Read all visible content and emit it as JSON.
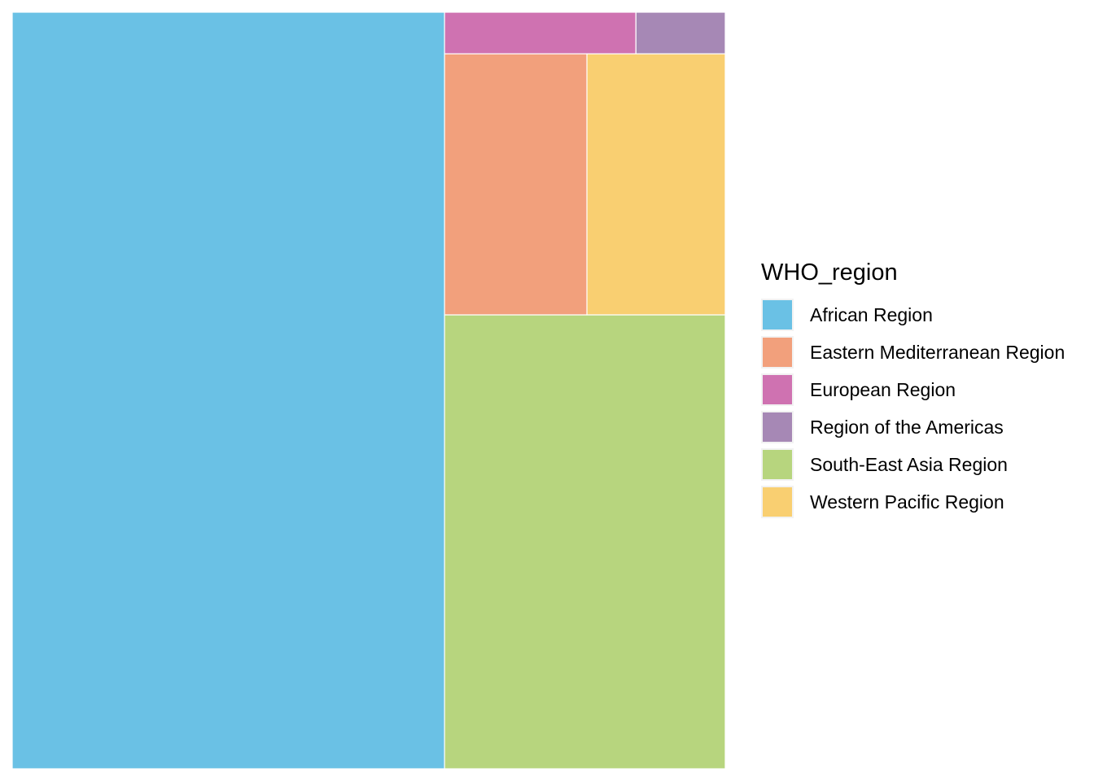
{
  "chart_data": {
    "type": "treemap",
    "title": "",
    "legend": {
      "title": "WHO_region",
      "placement": "right"
    },
    "series": [
      {
        "name": "African Region",
        "value": 61.6,
        "color": "#6AC1E5"
      },
      {
        "name": "South-East Asia Region",
        "value": 24.0,
        "color": "#B7D57E"
      },
      {
        "name": "Eastern Mediterranean Region",
        "value": 7.0,
        "color": "#F2A07C"
      },
      {
        "name": "Western Pacific Region",
        "value": 6.8,
        "color": "#F9CF71"
      },
      {
        "name": "European Region",
        "value": 1.5,
        "color": "#CF72B1"
      },
      {
        "name": "Region of the Americas",
        "value": 0.7,
        "color": "#A688B5"
      }
    ]
  },
  "legend_items": [
    {
      "label": "African Region",
      "color": "#6AC1E5"
    },
    {
      "label": "Eastern Mediterranean Region",
      "color": "#F2A07C"
    },
    {
      "label": "European Region",
      "color": "#CF72B1"
    },
    {
      "label": "Region of the Americas",
      "color": "#A688B5"
    },
    {
      "label": "South-East Asia Region",
      "color": "#B7D57E"
    },
    {
      "label": "Western Pacific Region",
      "color": "#F9CF71"
    }
  ]
}
